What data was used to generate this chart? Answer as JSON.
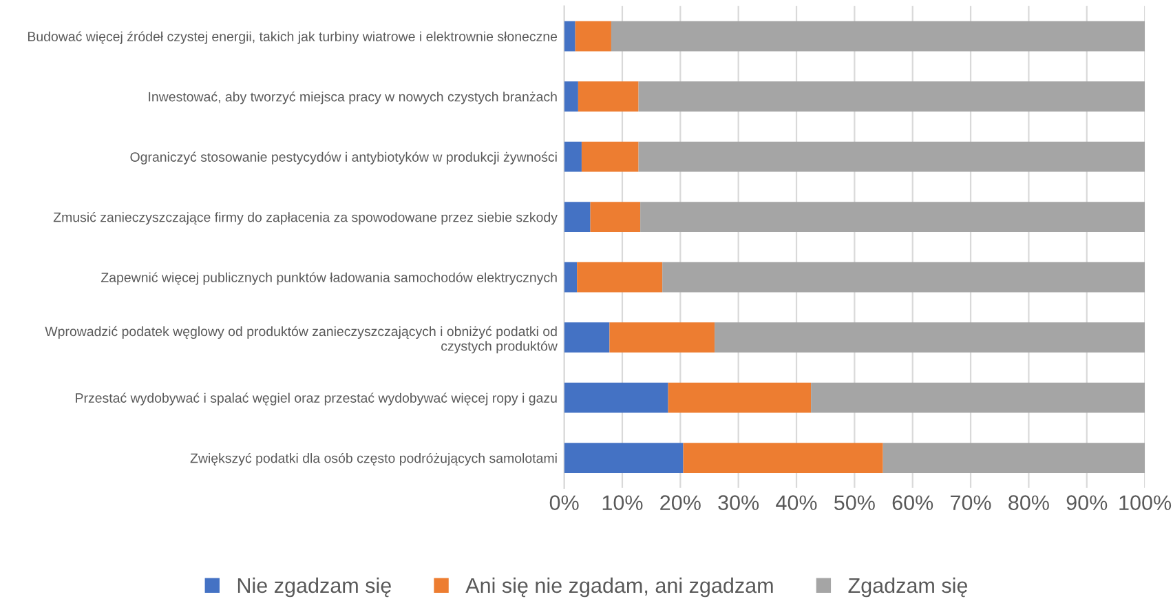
{
  "chart_data": {
    "type": "bar",
    "orientation": "horizontal",
    "stacked": true,
    "categories": [
      "Budować więcej źródeł czystej energii, takich jak turbiny wiatrowe i elektrownie słoneczne",
      "Inwestować, aby tworzyć miejsca pracy w nowych czystych branżach",
      "Ograniczyć stosowanie pestycydów i antybiotyków w produkcji żywności",
      "Zmusić zanieczyszczające firmy do zapłacenia za spowodowane przez siebie szkody",
      "Zapewnić więcej publicznych punktów ładowania samochodów elektrycznych",
      "Wprowadzić podatek węglowy od produktów zanieczyszczających i obniżyć podatki od czystych produktów",
      "Przestać wydobywać i spalać węgiel oraz przestać wydobywać więcej ropy i gazu",
      "Zwiększyć podatki dla osób często podróżujących samolotami"
    ],
    "series": [
      {
        "name": "Nie zgadzam się",
        "color": "#4472c4",
        "values": [
          1.9,
          2.4,
          3.0,
          4.5,
          2.2,
          7.8,
          17.9,
          20.5
        ]
      },
      {
        "name": "Ani się nie zgadam, ani zgadzam",
        "color": "#ed7d31",
        "values": [
          6.2,
          10.4,
          9.8,
          8.6,
          14.7,
          18.1,
          24.6,
          34.4
        ]
      },
      {
        "name": "Zgadzam się",
        "color": "#a5a5a5",
        "values": [
          91.9,
          87.2,
          87.2,
          86.9,
          83.1,
          74.1,
          57.5,
          45.1
        ]
      }
    ],
    "xlim": [
      0,
      100
    ],
    "xticks": [
      {
        "value": 0,
        "label": "0%"
      },
      {
        "value": 10,
        "label": "10%"
      },
      {
        "value": 20,
        "label": "20%"
      },
      {
        "value": 30,
        "label": "30%"
      },
      {
        "value": 40,
        "label": "40%"
      },
      {
        "value": 50,
        "label": "50%"
      },
      {
        "value": 60,
        "label": "60%"
      },
      {
        "value": 70,
        "label": "70%"
      },
      {
        "value": 80,
        "label": "80%"
      },
      {
        "value": 90,
        "label": "90%"
      },
      {
        "value": 100,
        "label": "100%"
      }
    ],
    "grid": "x",
    "legend": "bottom"
  }
}
